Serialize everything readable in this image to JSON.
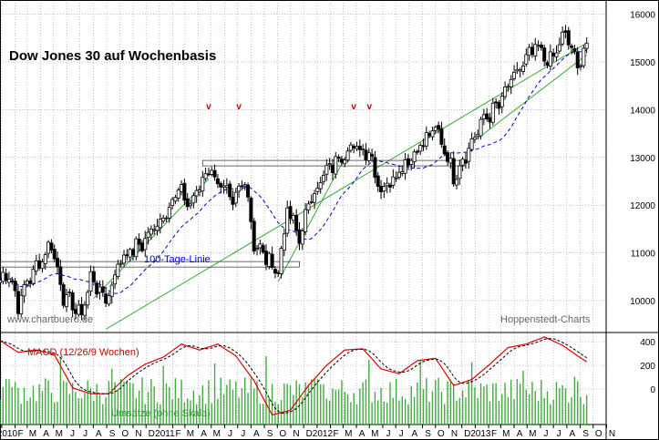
{
  "chart_data": [
    {
      "type": "candlestick",
      "title": "Dow Jones 30 auf Wochenbasis",
      "source_left": "www.chartbuero.de",
      "source_right": "Hoppenstedt-Charts",
      "yticks": [
        10000,
        11000,
        12000,
        13000,
        14000,
        15000,
        16000
      ],
      "ylim": [
        9350,
        16300
      ],
      "x_start": "2009-12-28",
      "x_end": "2013-10-31",
      "ma_label": "100-Tage-Linie",
      "colors": {
        "up": "#ffffff",
        "down": "#000000",
        "ma": "#0000cc",
        "trend": "#33aa33",
        "marker": "#cc0000",
        "grid": "#999999"
      },
      "markers": [
        {
          "date": "2011-04-25",
          "label": "v"
        },
        {
          "date": "2011-07-04",
          "label": "v"
        },
        {
          "date": "2012-03-26",
          "label": "v"
        },
        {
          "date": "2012-05-01",
          "label": "v"
        }
      ],
      "anchors": [
        [
          "2009-12-28",
          10430
        ],
        [
          "2010-01-18",
          10600
        ],
        [
          "2010-02-08",
          9900
        ],
        [
          "2010-03-01",
          10400
        ],
        [
          "2010-04-26",
          11200
        ],
        [
          "2010-05-24",
          10100
        ],
        [
          "2010-07-05",
          9700
        ],
        [
          "2010-07-26",
          10500
        ],
        [
          "2010-08-30",
          10000
        ],
        [
          "2010-10-04",
          10900
        ],
        [
          "2010-11-22",
          11200
        ],
        [
          "2011-01-03",
          11700
        ],
        [
          "2011-02-14",
          12300
        ],
        [
          "2011-03-14",
          12000
        ],
        [
          "2011-04-25",
          12800
        ],
        [
          "2011-05-30",
          12300
        ],
        [
          "2011-06-20",
          12000
        ],
        [
          "2011-07-18",
          12600
        ],
        [
          "2011-08-08",
          11200
        ],
        [
          "2011-09-05",
          10900
        ],
        [
          "2011-10-03",
          10600
        ],
        [
          "2011-10-24",
          11900
        ],
        [
          "2011-11-21",
          11300
        ],
        [
          "2011-12-19",
          12200
        ],
        [
          "2012-01-23",
          12700
        ],
        [
          "2012-03-12",
          13200
        ],
        [
          "2012-04-30",
          13150
        ],
        [
          "2012-05-28",
          12300
        ],
        [
          "2012-06-25",
          12600
        ],
        [
          "2012-08-13",
          13100
        ],
        [
          "2012-10-01",
          13600
        ],
        [
          "2012-10-22",
          13200
        ],
        [
          "2012-11-12",
          12600
        ],
        [
          "2012-12-17",
          13200
        ],
        [
          "2013-01-21",
          13800
        ],
        [
          "2013-02-25",
          14100
        ],
        [
          "2013-03-25",
          14600
        ],
        [
          "2013-05-20",
          15300
        ],
        [
          "2013-06-24",
          15000
        ],
        [
          "2013-07-29",
          15600
        ],
        [
          "2013-08-26",
          14900
        ],
        [
          "2013-09-16",
          15400
        ]
      ],
      "support_lines": [
        {
          "from": "2011-04-11",
          "to": "2012-12-10",
          "value": 12880
        },
        {
          "from": "2009-12-28",
          "to": "2011-11-21",
          "value": 10760
        }
      ],
      "trend_lines": [
        {
          "from": [
            "2010-08-30",
            9400
          ],
          "to": [
            "2013-09-16",
            15400
          ]
        },
        {
          "from": [
            "2010-08-02",
            10050
          ],
          "to": [
            "2011-04-25",
            12550
          ]
        },
        {
          "from": [
            "2011-10-03",
            10400
          ],
          "to": [
            "2012-03-12",
            13100
          ]
        },
        {
          "from": [
            "2013-01-07",
            13400
          ],
          "to": [
            "2013-09-16",
            15150
          ]
        }
      ]
    },
    {
      "type": "line",
      "title": "MACD (12/26/9 Wochen)",
      "volume_label": "Umsätze (ohne Skala)",
      "yticks": [
        0,
        200,
        400
      ],
      "ylim": [
        -300,
        470
      ],
      "series": [
        {
          "name": "MACD",
          "points": [
            [
              "2009-12-28",
              410
            ],
            [
              "2010-02-08",
              310
            ],
            [
              "2010-03-22",
              330
            ],
            [
              "2010-05-03",
              290
            ],
            [
              "2010-06-14",
              10
            ],
            [
              "2010-07-26",
              -40
            ],
            [
              "2010-09-06",
              -40
            ],
            [
              "2010-10-18",
              110
            ],
            [
              "2010-11-29",
              210
            ],
            [
              "2011-01-10",
              270
            ],
            [
              "2011-02-21",
              380
            ],
            [
              "2011-04-04",
              330
            ],
            [
              "2011-05-16",
              380
            ],
            [
              "2011-06-27",
              280
            ],
            [
              "2011-08-08",
              70
            ],
            [
              "2011-09-19",
              -220
            ],
            [
              "2011-10-31",
              -180
            ],
            [
              "2011-12-12",
              30
            ],
            [
              "2012-01-23",
              200
            ],
            [
              "2012-03-05",
              330
            ],
            [
              "2012-04-16",
              340
            ],
            [
              "2012-05-28",
              170
            ],
            [
              "2012-07-09",
              130
            ],
            [
              "2012-08-20",
              240
            ],
            [
              "2012-10-01",
              260
            ],
            [
              "2012-11-12",
              30
            ],
            [
              "2012-12-24",
              80
            ],
            [
              "2013-02-04",
              210
            ],
            [
              "2013-03-18",
              350
            ],
            [
              "2013-04-29",
              380
            ],
            [
              "2013-06-10",
              440
            ],
            [
              "2013-07-22",
              370
            ],
            [
              "2013-08-26",
              280
            ],
            [
              "2013-09-16",
              230
            ]
          ]
        }
      ],
      "macd_signal_lag_weeks": 4,
      "volume_seed": 7
    }
  ],
  "x_axis": {
    "labels": [
      {
        "date": "2010-01-01",
        "text": "2010"
      },
      {
        "date": "2010-02-01",
        "text": "F"
      },
      {
        "date": "2010-03-01",
        "text": "M"
      },
      {
        "date": "2010-04-01",
        "text": "A"
      },
      {
        "date": "2010-05-01",
        "text": "M"
      },
      {
        "date": "2010-06-01",
        "text": "J"
      },
      {
        "date": "2010-07-01",
        "text": "J"
      },
      {
        "date": "2010-08-01",
        "text": "A"
      },
      {
        "date": "2010-09-01",
        "text": "S"
      },
      {
        "date": "2010-10-01",
        "text": "O"
      },
      {
        "date": "2010-11-01",
        "text": "N"
      },
      {
        "date": "2010-12-01",
        "text": "D"
      },
      {
        "date": "2011-01-01",
        "text": "2011"
      },
      {
        "date": "2011-02-01",
        "text": "F"
      },
      {
        "date": "2011-03-01",
        "text": "M"
      },
      {
        "date": "2011-04-01",
        "text": "A"
      },
      {
        "date": "2011-05-01",
        "text": "M"
      },
      {
        "date": "2011-06-01",
        "text": "J"
      },
      {
        "date": "2011-07-01",
        "text": "J"
      },
      {
        "date": "2011-08-01",
        "text": "A"
      },
      {
        "date": "2011-09-01",
        "text": "S"
      },
      {
        "date": "2011-10-01",
        "text": "O"
      },
      {
        "date": "2011-11-01",
        "text": "N"
      },
      {
        "date": "2011-12-01",
        "text": "D"
      },
      {
        "date": "2012-01-01",
        "text": "2012"
      },
      {
        "date": "2012-02-01",
        "text": "F"
      },
      {
        "date": "2012-03-01",
        "text": "M"
      },
      {
        "date": "2012-04-01",
        "text": "A"
      },
      {
        "date": "2012-05-01",
        "text": "M"
      },
      {
        "date": "2012-06-01",
        "text": "J"
      },
      {
        "date": "2012-07-01",
        "text": "J"
      },
      {
        "date": "2012-08-01",
        "text": "A"
      },
      {
        "date": "2012-09-01",
        "text": "S"
      },
      {
        "date": "2012-10-01",
        "text": "O"
      },
      {
        "date": "2012-11-01",
        "text": "N"
      },
      {
        "date": "2012-12-01",
        "text": "D"
      },
      {
        "date": "2013-01-01",
        "text": "2013"
      },
      {
        "date": "2013-02-01",
        "text": "F"
      },
      {
        "date": "2013-03-01",
        "text": "M"
      },
      {
        "date": "2013-04-01",
        "text": "A"
      },
      {
        "date": "2013-05-01",
        "text": "M"
      },
      {
        "date": "2013-06-01",
        "text": "J"
      },
      {
        "date": "2013-07-01",
        "text": "J"
      },
      {
        "date": "2013-08-01",
        "text": "A"
      },
      {
        "date": "2013-09-01",
        "text": "S"
      },
      {
        "date": "2013-10-01",
        "text": "O"
      },
      {
        "date": "2013-11-01",
        "text": "N"
      }
    ]
  }
}
